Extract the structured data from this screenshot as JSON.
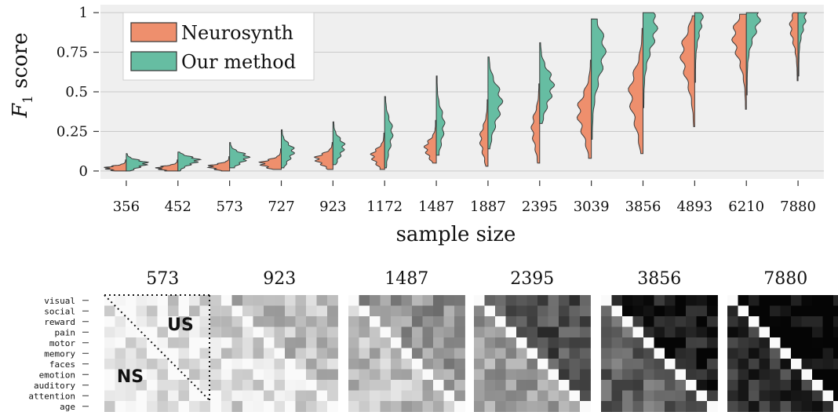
{
  "chart_data": [
    {
      "type": "violin",
      "title": "",
      "xlabel": "sample size",
      "ylabel": "F",
      "ylabel_sub": "1",
      "ylabel_suffix": "score",
      "ylim": [
        -0.05,
        1.05
      ],
      "yticks": [
        {
          "value": 0,
          "label": "0"
        },
        {
          "value": 0.25,
          "label": "0.25"
        },
        {
          "value": 0.5,
          "label": "0.5"
        },
        {
          "value": 0.75,
          "label": "0.75"
        },
        {
          "value": 1,
          "label": "1"
        }
      ],
      "grid": true,
      "legend_position": "top-left",
      "categories": [
        "356",
        "452",
        "573",
        "727",
        "923",
        "1172",
        "1487",
        "1887",
        "2395",
        "3039",
        "3856",
        "4893",
        "6210",
        "7880"
      ],
      "series": [
        {
          "name": "Neurosynth",
          "color": "#EE8F6D",
          "side": "left",
          "median": [
            0.02,
            0.02,
            0.03,
            0.05,
            0.08,
            0.1,
            0.15,
            0.21,
            0.28,
            0.38,
            0.5,
            0.75,
            0.86,
            0.92
          ],
          "min": [
            0.0,
            0.0,
            0.0,
            0.01,
            0.01,
            0.01,
            0.05,
            0.03,
            0.05,
            0.08,
            0.11,
            0.28,
            0.39,
            0.57
          ],
          "max": [
            0.07,
            0.07,
            0.09,
            0.14,
            0.18,
            0.24,
            0.32,
            0.45,
            0.55,
            0.7,
            0.9,
            0.98,
            0.99,
            1.0
          ]
        },
        {
          "name": "Our method",
          "color": "#66BDA2",
          "side": "right",
          "median": [
            0.05,
            0.07,
            0.09,
            0.13,
            0.16,
            0.25,
            0.3,
            0.45,
            0.55,
            0.78,
            0.92,
            0.98,
            0.99,
            0.99
          ],
          "min": [
            0.0,
            0.0,
            0.02,
            0.02,
            0.04,
            0.02,
            0.1,
            0.14,
            0.3,
            0.2,
            0.4,
            0.56,
            0.48,
            0.6
          ],
          "max": [
            0.11,
            0.12,
            0.18,
            0.26,
            0.31,
            0.47,
            0.6,
            0.72,
            0.81,
            0.96,
            1.0,
            1.0,
            1.0,
            1.0
          ]
        }
      ]
    },
    {
      "type": "heatmap",
      "title": "",
      "sample_sizes": [
        "573",
        "923",
        "1487",
        "2395",
        "3856",
        "7880"
      ],
      "row_labels": [
        "visual",
        "social",
        "reward",
        "pain",
        "motor",
        "memory",
        "faces",
        "emotion",
        "auditory",
        "attention",
        "age"
      ],
      "annotations": {
        "upper": "US",
        "lower": "NS"
      },
      "colormap": "white-to-black (higher similarity darker)",
      "mean_upper": [
        0.12,
        0.25,
        0.42,
        0.7,
        0.9,
        1.0
      ],
      "mean_lower": [
        0.06,
        0.14,
        0.24,
        0.38,
        0.62,
        0.82
      ]
    }
  ]
}
